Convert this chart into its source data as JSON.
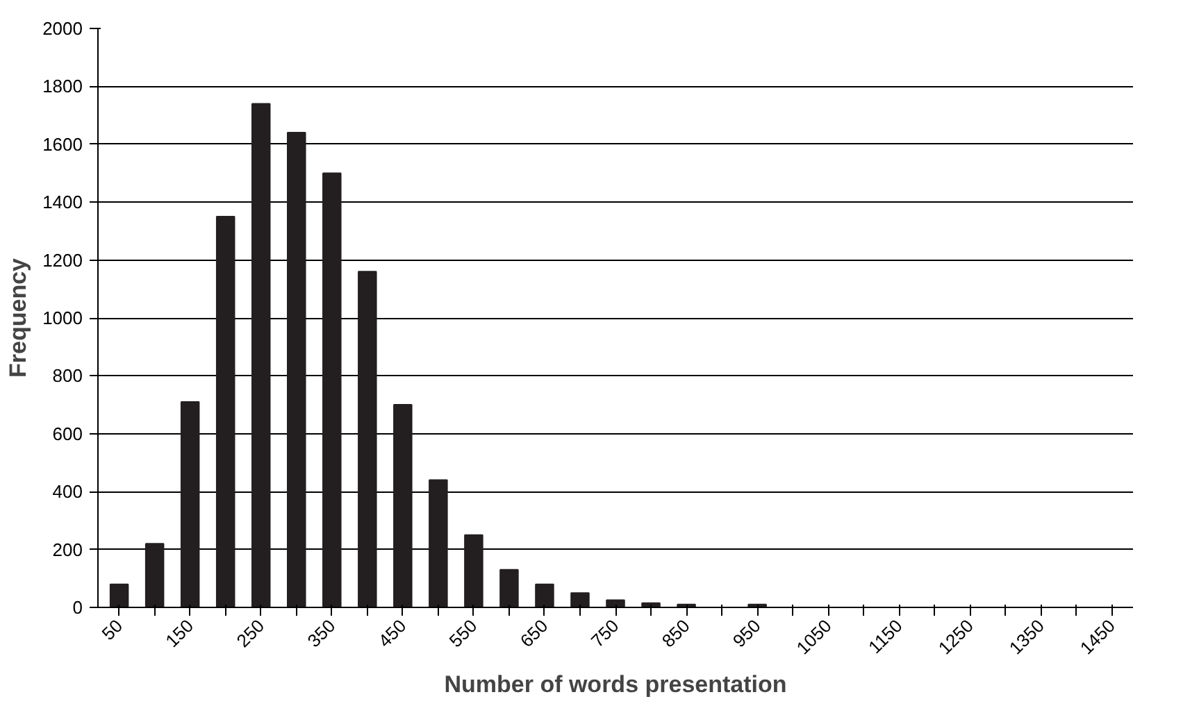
{
  "chart_data": {
    "type": "bar",
    "xlabel": "Number of words presentation",
    "ylabel": "Frequency",
    "categories": [
      "50",
      null,
      "150",
      null,
      "250",
      null,
      "350",
      null,
      "450",
      null,
      "550",
      null,
      "650",
      null,
      "750",
      null,
      "850",
      null,
      "950",
      null,
      "1050",
      null,
      "1150",
      null,
      "1250",
      null,
      "1350",
      null,
      "1450"
    ],
    "values": [
      80,
      220,
      710,
      1350,
      1740,
      1640,
      1500,
      1160,
      700,
      440,
      250,
      130,
      80,
      50,
      25,
      15,
      10,
      0,
      10,
      0,
      0,
      0,
      0,
      0,
      0,
      0,
      0,
      0,
      0
    ],
    "color": "#231f20",
    "ylim": [
      0,
      2000
    ],
    "yticks": [
      0,
      200,
      400,
      600,
      800,
      1000,
      1200,
      1400,
      1600,
      1800,
      2000
    ],
    "grid": "y"
  }
}
